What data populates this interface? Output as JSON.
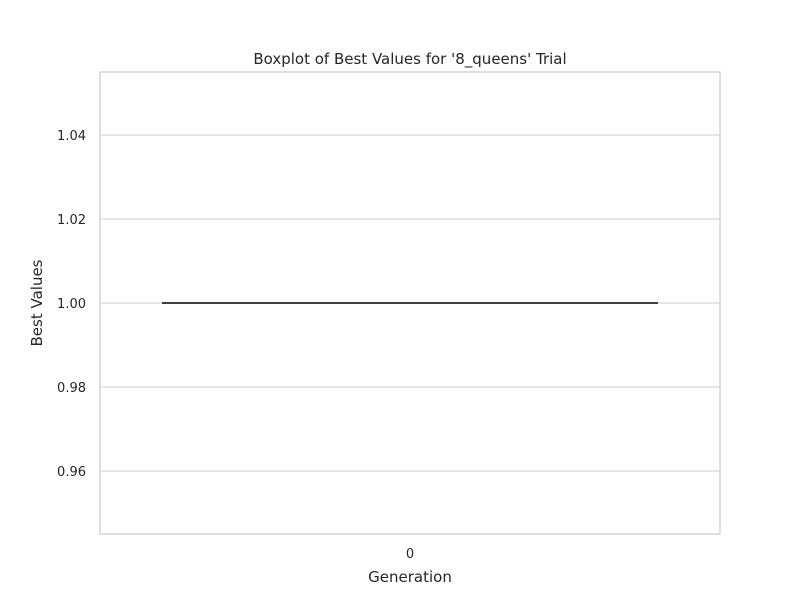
{
  "chart_data": {
    "type": "box",
    "title": "Boxplot of Best Values for '8_queens' Trial",
    "xlabel": "Generation",
    "ylabel": "Best Values",
    "categories": [
      "0"
    ],
    "boxes": [
      {
        "category": "0",
        "min": 1.0,
        "q1": 1.0,
        "median": 1.0,
        "q3": 1.0,
        "max": 1.0
      }
    ],
    "ylim": [
      0.945,
      1.055
    ],
    "yticks": [
      0.96,
      0.98,
      1.0,
      1.02,
      1.04
    ],
    "ytick_labels": [
      "0.96",
      "0.98",
      "1.00",
      "1.02",
      "1.04"
    ],
    "grid": true,
    "colors": {
      "grid": "#cccccc",
      "frame": "#cccccc",
      "median": "#3f3f3f"
    }
  }
}
